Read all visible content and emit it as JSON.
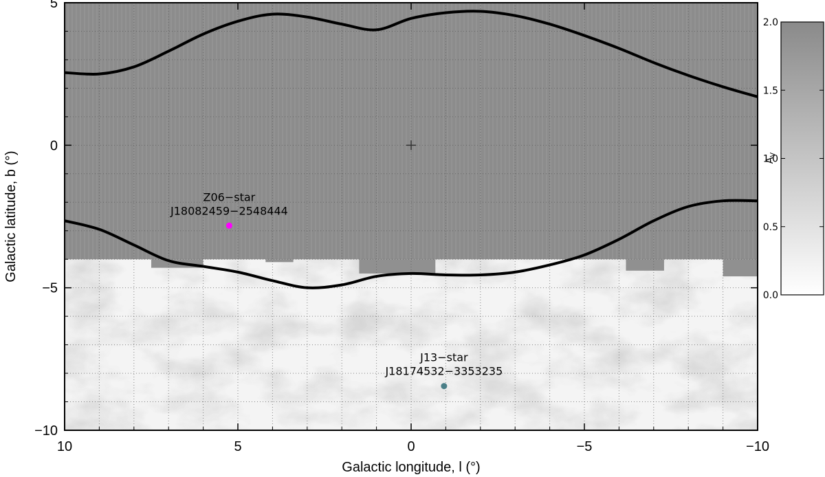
{
  "chart_data": {
    "type": "heatmap",
    "xlabel": "Galactic longitude, l (°)",
    "ylabel": "Galactic latitude, b (°)",
    "xlim": [
      10,
      -10
    ],
    "ylim": [
      -10,
      5
    ],
    "xticks": [
      "10",
      "5",
      "0",
      "−5",
      "−10"
    ],
    "yticks": [
      "5",
      "0",
      "−5",
      "−10"
    ],
    "grid": true,
    "colorbar": {
      "label": "A_V",
      "range": [
        0.0,
        2.0
      ],
      "ticks": [
        "2.0",
        "1.5",
        "1.0",
        "0.5",
        "0.0"
      ]
    },
    "center_marker": {
      "l": 0,
      "b": 0
    },
    "saturated_band_b_min": -4,
    "contours": [
      {
        "points": [
          [
            10,
            2.55
          ],
          [
            9,
            2.5
          ],
          [
            8,
            2.75
          ],
          [
            7,
            3.3
          ],
          [
            6,
            3.9
          ],
          [
            5,
            4.35
          ],
          [
            4,
            4.6
          ],
          [
            3,
            4.5
          ],
          [
            2,
            4.25
          ],
          [
            1,
            4.05
          ],
          [
            0,
            4.45
          ],
          [
            -1,
            4.65
          ],
          [
            -2,
            4.7
          ],
          [
            -3,
            4.55
          ],
          [
            -4,
            4.25
          ],
          [
            -5,
            3.85
          ],
          [
            -6,
            3.4
          ],
          [
            -7,
            2.9
          ],
          [
            -8,
            2.45
          ],
          [
            -9,
            2.05
          ],
          [
            -10,
            1.7
          ]
        ]
      },
      {
        "points": [
          [
            10,
            -2.65
          ],
          [
            9,
            -2.95
          ],
          [
            8,
            -3.5
          ],
          [
            7,
            -4.05
          ],
          [
            6,
            -4.25
          ],
          [
            5,
            -4.45
          ],
          [
            4,
            -4.75
          ],
          [
            3,
            -5.0
          ],
          [
            2,
            -4.9
          ],
          [
            1,
            -4.6
          ],
          [
            0,
            -4.5
          ],
          [
            -1,
            -4.55
          ],
          [
            -2,
            -4.55
          ],
          [
            -3,
            -4.45
          ],
          [
            -4,
            -4.2
          ],
          [
            -5,
            -3.85
          ],
          [
            -6,
            -3.3
          ],
          [
            -7,
            -2.65
          ],
          [
            -8,
            -2.15
          ],
          [
            -9,
            -1.95
          ],
          [
            -10,
            -1.95
          ]
        ]
      }
    ],
    "stars": [
      {
        "name": "Z06−star",
        "id": "J18082459−2548444",
        "l": 5.25,
        "b": -2.82,
        "color": "#ff00ff"
      },
      {
        "name": "J13−star",
        "id": "J18174532−3353235",
        "l": -0.95,
        "b": -8.45,
        "color": "#4a7f88"
      }
    ]
  }
}
